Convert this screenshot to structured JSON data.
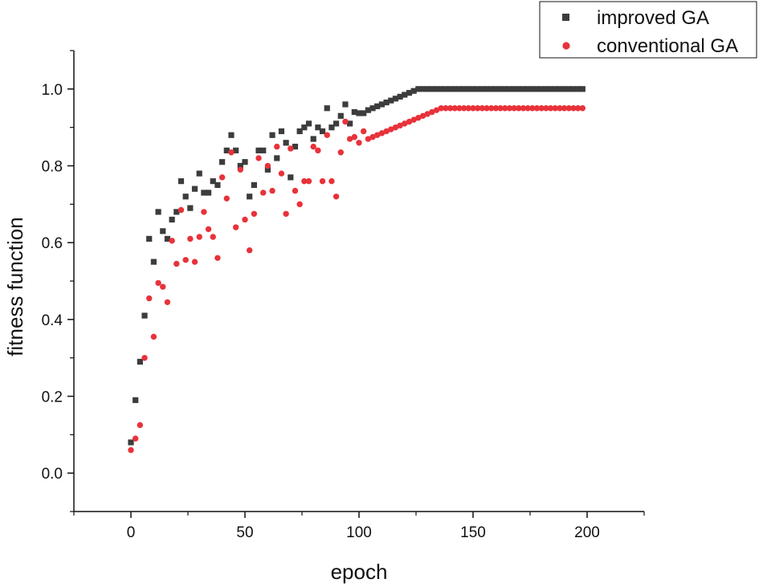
{
  "chart_data": {
    "type": "scatter",
    "title": "",
    "xlabel": "epoch",
    "ylabel": "fitness function",
    "xlim": [
      -25,
      225
    ],
    "ylim": [
      -0.1,
      1.1
    ],
    "xticks": [
      0,
      50,
      100,
      150,
      200
    ],
    "xtick_labels": [
      "0",
      "50",
      "100",
      "150",
      "200"
    ],
    "yticks": [
      0.0,
      0.2,
      0.4,
      0.6,
      0.8,
      1.0
    ],
    "ytick_labels": [
      "0.0",
      "0.2",
      "0.4",
      "0.6",
      "0.8",
      "1.0"
    ],
    "grid": false,
    "legend_position": "top-right",
    "series": [
      {
        "name": "improved GA",
        "marker": "square",
        "color": "#3c3c3c",
        "x": [
          0,
          2,
          4,
          6,
          8,
          10,
          12,
          14,
          16,
          18,
          20,
          22,
          24,
          26,
          28,
          30,
          32,
          34,
          36,
          38,
          40,
          42,
          44,
          46,
          48,
          50,
          52,
          54,
          56,
          58,
          60,
          62,
          64,
          66,
          68,
          70,
          72,
          74,
          76,
          78,
          80,
          82,
          84,
          86,
          88,
          90,
          92,
          94,
          96,
          98,
          100,
          102,
          104,
          106,
          108,
          110,
          112,
          114,
          116,
          118,
          120,
          122,
          124,
          126,
          128,
          130,
          132,
          134,
          136,
          138,
          140,
          142,
          144,
          146,
          148,
          150,
          152,
          154,
          156,
          158,
          160,
          162,
          164,
          166,
          168,
          170,
          172,
          174,
          176,
          178,
          180,
          182,
          184,
          186,
          188,
          190,
          192,
          194,
          196,
          198
        ],
        "y": [
          0.08,
          0.19,
          0.29,
          0.41,
          0.61,
          0.55,
          0.68,
          0.63,
          0.61,
          0.66,
          0.68,
          0.76,
          0.72,
          0.69,
          0.74,
          0.78,
          0.73,
          0.73,
          0.76,
          0.75,
          0.81,
          0.84,
          0.88,
          0.84,
          0.8,
          0.81,
          0.72,
          0.75,
          0.84,
          0.84,
          0.79,
          0.88,
          0.82,
          0.89,
          0.86,
          0.77,
          0.85,
          0.89,
          0.9,
          0.91,
          0.87,
          0.9,
          0.89,
          0.95,
          0.9,
          0.91,
          0.93,
          0.96,
          0.91,
          0.94,
          0.937,
          0.937,
          0.945,
          0.95,
          0.955,
          0.96,
          0.965,
          0.97,
          0.975,
          0.98,
          0.985,
          0.99,
          0.995,
          1.0,
          1.0,
          1.0,
          1.0,
          1.0,
          1.0,
          1.0,
          1.0,
          1.0,
          1.0,
          1.0,
          1.0,
          1.0,
          1.0,
          1.0,
          1.0,
          1.0,
          1.0,
          1.0,
          1.0,
          1.0,
          1.0,
          1.0,
          1.0,
          1.0,
          1.0,
          1.0,
          1.0,
          1.0,
          1.0,
          1.0,
          1.0,
          1.0,
          1.0,
          1.0,
          1.0,
          1.0
        ]
      },
      {
        "name": "conventional GA",
        "marker": "circle",
        "color": "#e8323a",
        "x": [
          0,
          2,
          4,
          6,
          8,
          10,
          12,
          14,
          16,
          18,
          20,
          22,
          24,
          26,
          28,
          30,
          32,
          34,
          36,
          38,
          40,
          42,
          44,
          46,
          48,
          50,
          52,
          54,
          56,
          58,
          60,
          62,
          64,
          66,
          68,
          70,
          72,
          74,
          76,
          78,
          80,
          82,
          84,
          86,
          88,
          90,
          92,
          94,
          96,
          98,
          100,
          102,
          104,
          106,
          108,
          110,
          112,
          114,
          116,
          118,
          120,
          122,
          124,
          126,
          128,
          130,
          132,
          134,
          136,
          138,
          140,
          142,
          144,
          146,
          148,
          150,
          152,
          154,
          156,
          158,
          160,
          162,
          164,
          166,
          168,
          170,
          172,
          174,
          176,
          178,
          180,
          182,
          184,
          186,
          188,
          190,
          192,
          194,
          196,
          198
        ],
        "y": [
          0.06,
          0.09,
          0.125,
          0.3,
          0.455,
          0.355,
          0.495,
          0.485,
          0.445,
          0.605,
          0.545,
          0.685,
          0.555,
          0.61,
          0.55,
          0.615,
          0.68,
          0.635,
          0.615,
          0.56,
          0.77,
          0.715,
          0.835,
          0.64,
          0.79,
          0.66,
          0.58,
          0.675,
          0.82,
          0.73,
          0.8,
          0.735,
          0.85,
          0.78,
          0.675,
          0.845,
          0.735,
          0.7,
          0.76,
          0.76,
          0.85,
          0.84,
          0.76,
          0.88,
          0.76,
          0.72,
          0.835,
          0.915,
          0.87,
          0.875,
          0.86,
          0.89,
          0.87,
          0.875,
          0.88,
          0.885,
          0.89,
          0.895,
          0.9,
          0.905,
          0.91,
          0.915,
          0.92,
          0.925,
          0.93,
          0.935,
          0.94,
          0.945,
          0.95,
          0.95,
          0.95,
          0.95,
          0.95,
          0.95,
          0.95,
          0.95,
          0.95,
          0.95,
          0.95,
          0.95,
          0.95,
          0.95,
          0.95,
          0.95,
          0.95,
          0.95,
          0.95,
          0.95,
          0.95,
          0.95,
          0.95,
          0.95,
          0.95,
          0.95,
          0.95,
          0.95,
          0.95,
          0.95,
          0.95,
          0.95
        ]
      }
    ]
  }
}
